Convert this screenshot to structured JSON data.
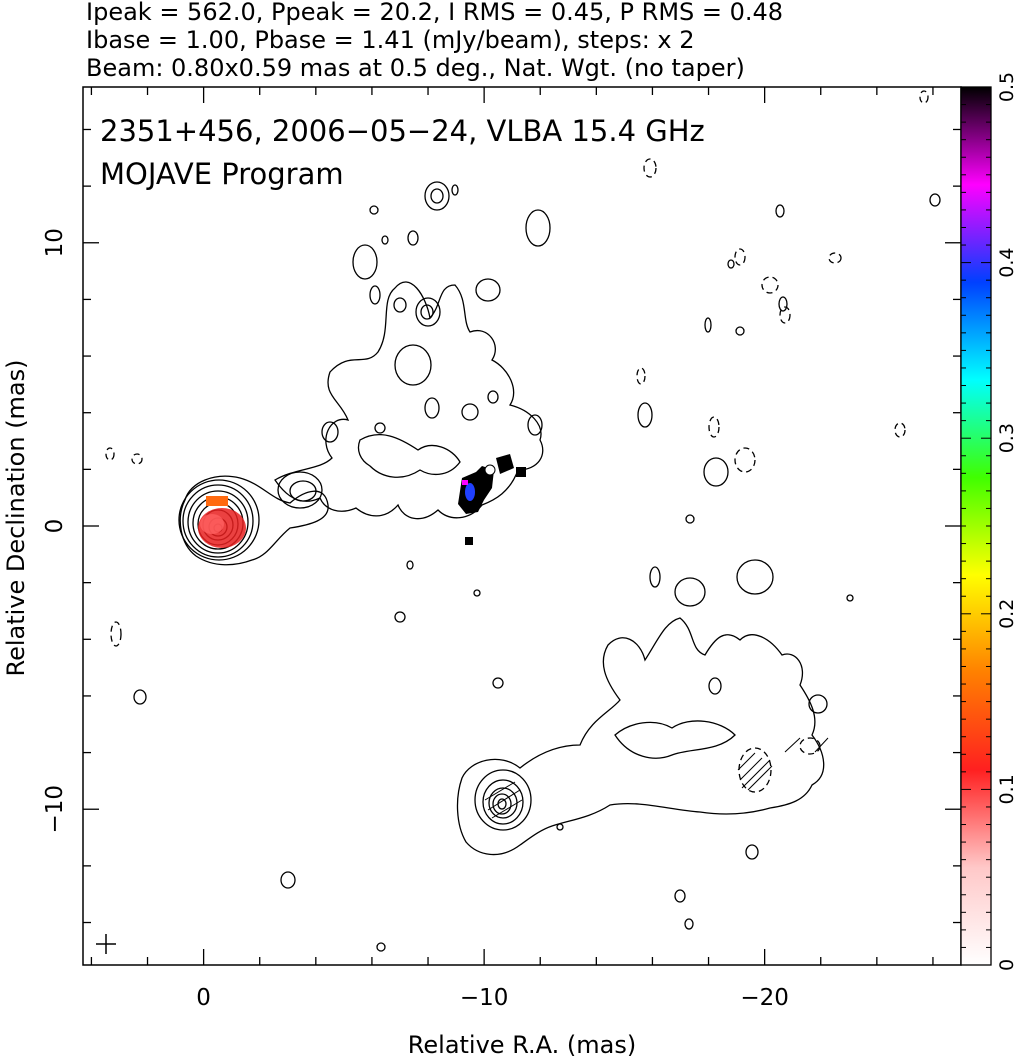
{
  "header": {
    "line1": "Ipeak = 562.0, Ppeak = 20.2, I RMS = 0.45, P RMS = 0.48",
    "line2": "Ibase = 1.00, Pbase = 1.41 (mJy/beam), steps: x 2",
    "line3": "Beam: 0.80x0.59 mas at 0.5 deg., Nat. Wgt. (no taper)"
  },
  "chart_data": {
    "type": "heatmap",
    "title": "2351+456, 2006−05−24, VLBA 15.4 GHz",
    "subtitle": "MOJAVE Program",
    "xlabel": "Relative R.A. (mas)",
    "ylabel": "Relative Declination (mas)",
    "xlim": [
      4.3,
      -27.0
    ],
    "ylim": [
      -15.5,
      15.5
    ],
    "x_ticks": [
      0,
      -10,
      -20
    ],
    "x_tick_labels": [
      "0",
      "−10",
      "−20"
    ],
    "y_ticks": [
      10,
      0,
      -10
    ],
    "y_tick_labels": [
      "10",
      "0",
      "−10"
    ],
    "grid": false,
    "colorbar": {
      "range": [
        0,
        0.5
      ],
      "ticks": [
        0,
        0.1,
        0.2,
        0.3,
        0.4,
        0.5
      ],
      "tick_labels": [
        "0",
        "0.1",
        "0.2",
        "0.3",
        "0.4",
        "0.5"
      ],
      "stops": [
        "#ffffff",
        "#ffc8c8",
        "#ff2020",
        "#ff8000",
        "#ffff00",
        "#40ff00",
        "#00ffff",
        "#0040ff",
        "#ff00ff",
        "#000000"
      ]
    },
    "contour_levels_mJy": [
      -1,
      1,
      2,
      4,
      8,
      16,
      32,
      64,
      128,
      256,
      512
    ],
    "components": [
      {
        "name": "core",
        "x": -0.5,
        "y": 0.0,
        "peak_mJy": 562.0
      },
      {
        "name": "knot",
        "x": -10.7,
        "y": -10.0
      },
      {
        "name": "polarized patch",
        "x": -9.8,
        "y": 1.2
      }
    ]
  }
}
